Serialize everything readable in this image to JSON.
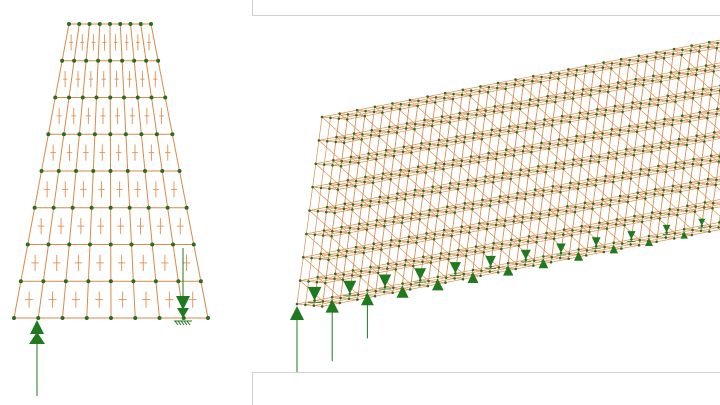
{
  "colors": {
    "background": "#ffffff",
    "mesh_line": "#d98a4a",
    "node": "#2e6b1f",
    "cross_mark": "#e09050",
    "support": "#1f7a1f",
    "frame_border": "#d0d0d0"
  },
  "views": [
    {
      "name": "2d-plate-elevation",
      "mesh": {
        "columns": 8,
        "rows": 8
      },
      "supports": [
        "pin-arrow-up",
        "roller-arrow-down"
      ]
    },
    {
      "name": "3d-block-mesh-view",
      "mesh": {
        "layers": 8,
        "columns_visible": 26
      },
      "supports": [
        "arrow-row-along-bottom-edge"
      ]
    }
  ],
  "icons": [
    "support-arrow-icon",
    "ground-hatch-icon"
  ]
}
